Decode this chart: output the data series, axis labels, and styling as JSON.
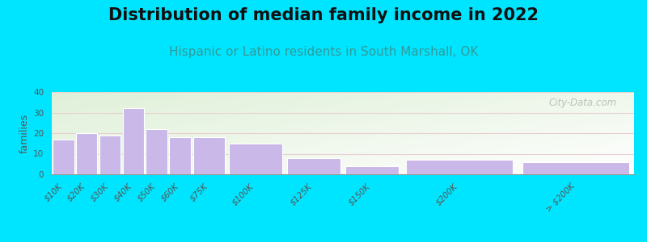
{
  "title": "Distribution of median family income in 2022",
  "subtitle": "Hispanic or Latino residents in South Marshall, OK",
  "ylabel": "families",
  "categories": [
    "$10K",
    "$20K",
    "$30K",
    "$40K",
    "$50K",
    "$60K",
    "$75K",
    "$100K",
    "$125K",
    "$150K",
    "$200K",
    "> $200K"
  ],
  "values": [
    17,
    20,
    19,
    32,
    22,
    18,
    18,
    15,
    8,
    4,
    7,
    6
  ],
  "bar_lefts": [
    0,
    10,
    20,
    30,
    40,
    50,
    60,
    75,
    100,
    125,
    150,
    200
  ],
  "bar_widths": [
    10,
    10,
    10,
    10,
    10,
    10,
    15,
    25,
    25,
    25,
    50,
    50
  ],
  "xlim": [
    0,
    250
  ],
  "ylim": [
    0,
    40
  ],
  "yticks": [
    0,
    10,
    20,
    30,
    40
  ],
  "bar_color": "#c9b8e8",
  "bar_edge_color": "#ffffff",
  "background_outer": "#00e5ff",
  "background_inner_top_left": "#dff0d8",
  "background_inner_bottom_right": "#ffffff",
  "title_fontsize": 15,
  "subtitle_fontsize": 11,
  "subtitle_color": "#339999",
  "ylabel_fontsize": 9,
  "tick_fontsize": 7.5,
  "watermark_text": "City-Data.com",
  "watermark_color": "#b0b8b0",
  "grid_color": "#e8d0d0",
  "spine_color": "#999999"
}
